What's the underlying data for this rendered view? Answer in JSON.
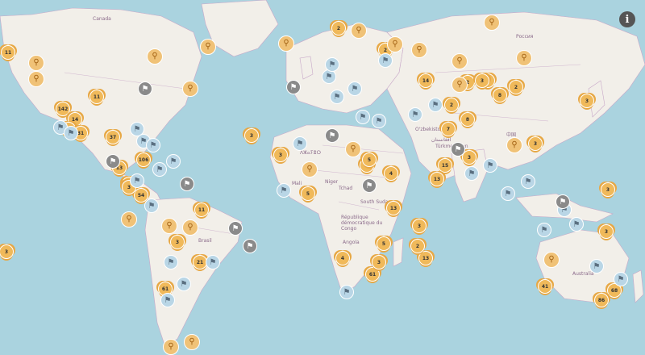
{
  "info_button_label": "i",
  "colors": {
    "water": "#aad3df",
    "land": "#f2efe9",
    "border": "#c8a8c8",
    "cluster": "#f0b95a",
    "flag": "#b9d6e6",
    "flag_dark": "#8a8a8a"
  },
  "labels": {
    "canada": "Canada",
    "russia": "Россия",
    "brasil": "Brasil",
    "mali": "Mali",
    "niger": "Niger",
    "tchad": "Tchad",
    "south_sudan": "South Sudan",
    "rdc": "République démocratique du Congo",
    "angola": "Angola",
    "australia": "Australia",
    "turkmenistan": "Türkmenistan",
    "uzbekistan": "O'zbekiston",
    "afghanistan": "افغانستان",
    "china": "中国",
    "algeria": "ⴷⵣⴰⵢⴻⵔ"
  },
  "markers": [
    {
      "type": "count",
      "text": "11"
    },
    {
      "type": "count",
      "text": "142"
    },
    {
      "type": "count",
      "text": "14"
    },
    {
      "type": "count",
      "text": "11"
    },
    {
      "type": "count",
      "text": "27"
    },
    {
      "type": "count",
      "text": "31"
    },
    {
      "type": "count",
      "text": "37"
    },
    {
      "type": "count",
      "text": "106"
    },
    {
      "type": "count",
      "text": "13"
    },
    {
      "type": "count",
      "text": "21"
    },
    {
      "type": "count",
      "text": "54"
    },
    {
      "type": "count",
      "text": "3"
    },
    {
      "type": "count",
      "text": "11"
    },
    {
      "type": "count",
      "text": "3"
    },
    {
      "type": "count",
      "text": "3"
    },
    {
      "type": "count",
      "text": "61"
    },
    {
      "type": "count",
      "text": "3"
    },
    {
      "type": "count",
      "text": "21"
    },
    {
      "type": "count",
      "text": "14"
    },
    {
      "type": "count",
      "text": "13"
    },
    {
      "type": "count",
      "text": "7"
    },
    {
      "type": "count",
      "text": "8"
    },
    {
      "type": "count",
      "text": "3"
    },
    {
      "type": "count",
      "text": "15"
    },
    {
      "type": "count",
      "text": "3"
    },
    {
      "type": "count",
      "text": "8"
    },
    {
      "type": "count",
      "text": "13"
    },
    {
      "type": "count",
      "text": "41"
    },
    {
      "type": "count",
      "text": "68"
    },
    {
      "type": "count",
      "text": "86"
    },
    {
      "type": "count",
      "text": "3"
    },
    {
      "type": "count",
      "text": "3"
    },
    {
      "type": "count",
      "text": "61"
    },
    {
      "type": "count",
      "text": "2"
    },
    {
      "type": "count",
      "text": "2"
    },
    {
      "type": "count",
      "text": "2"
    },
    {
      "type": "count",
      "text": "3"
    },
    {
      "type": "count",
      "text": "2"
    },
    {
      "type": "count",
      "text": "3"
    },
    {
      "type": "count",
      "text": "5"
    },
    {
      "type": "count",
      "text": "2"
    },
    {
      "type": "count",
      "text": "5"
    },
    {
      "type": "count",
      "text": "3"
    },
    {
      "type": "count",
      "text": "4"
    },
    {
      "type": "count",
      "text": "4"
    },
    {
      "type": "count",
      "text": "13"
    },
    {
      "type": "count",
      "text": "3"
    },
    {
      "type": "count",
      "text": "2"
    },
    {
      "type": "count",
      "text": "3"
    },
    {
      "type": "count",
      "text": "5"
    },
    {
      "type": "count",
      "text": "3"
    },
    {
      "type": "count",
      "text": "3"
    },
    {
      "type": "single",
      "text": ""
    },
    {
      "type": "single",
      "text": ""
    },
    {
      "type": "single",
      "text": ""
    },
    {
      "type": "single",
      "text": ""
    },
    {
      "type": "single",
      "text": ""
    },
    {
      "type": "single",
      "text": ""
    },
    {
      "type": "single",
      "text": ""
    },
    {
      "type": "single",
      "text": ""
    },
    {
      "type": "single",
      "text": ""
    },
    {
      "type": "single",
      "text": ""
    },
    {
      "type": "single",
      "text": ""
    },
    {
      "type": "single",
      "text": ""
    },
    {
      "type": "single",
      "text": ""
    },
    {
      "type": "single",
      "text": ""
    },
    {
      "type": "single",
      "text": ""
    },
    {
      "type": "single",
      "text": ""
    },
    {
      "type": "single",
      "text": ""
    },
    {
      "type": "single",
      "text": ""
    },
    {
      "type": "single",
      "text": ""
    },
    {
      "type": "single",
      "text": ""
    },
    {
      "type": "single",
      "text": ""
    },
    {
      "type": "single",
      "text": ""
    },
    {
      "type": "flag",
      "text": ""
    },
    {
      "type": "flag",
      "text": ""
    },
    {
      "type": "flag",
      "text": ""
    },
    {
      "type": "flag",
      "text": ""
    },
    {
      "type": "flag",
      "text": ""
    },
    {
      "type": "flag",
      "text": ""
    },
    {
      "type": "flag",
      "text": ""
    },
    {
      "type": "flag",
      "text": ""
    },
    {
      "type": "flag",
      "text": ""
    },
    {
      "type": "flag",
      "text": ""
    },
    {
      "type": "flag",
      "text": ""
    },
    {
      "type": "flag",
      "text": ""
    },
    {
      "type": "flag",
      "text": ""
    },
    {
      "type": "flag",
      "text": ""
    },
    {
      "type": "flag",
      "text": ""
    },
    {
      "type": "flag",
      "text": ""
    },
    {
      "type": "flag",
      "text": ""
    },
    {
      "type": "flag",
      "text": ""
    },
    {
      "type": "flag",
      "text": ""
    },
    {
      "type": "flag",
      "text": ""
    },
    {
      "type": "flag",
      "text": ""
    },
    {
      "type": "flag",
      "text": ""
    },
    {
      "type": "flag",
      "text": ""
    },
    {
      "type": "flag",
      "text": ""
    },
    {
      "type": "flag",
      "text": ""
    },
    {
      "type": "flag",
      "text": ""
    },
    {
      "type": "flag",
      "text": ""
    },
    {
      "type": "flag",
      "text": ""
    },
    {
      "type": "flag",
      "text": ""
    },
    {
      "type": "flag",
      "text": ""
    },
    {
      "type": "flag",
      "text": ""
    },
    {
      "type": "flag",
      "text": ""
    },
    {
      "type": "flag",
      "text": ""
    },
    {
      "type": "flag",
      "text": ""
    },
    {
      "type": "flag_dark",
      "text": ""
    },
    {
      "type": "flag_dark",
      "text": ""
    },
    {
      "type": "flag_dark",
      "text": ""
    },
    {
      "type": "flag_dark",
      "text": ""
    },
    {
      "type": "flag_dark",
      "text": ""
    },
    {
      "type": "flag_dark",
      "text": ""
    },
    {
      "type": "flag_dark",
      "text": ""
    },
    {
      "type": "flag_dark",
      "text": ""
    },
    {
      "type": "flag_dark",
      "text": ""
    },
    {
      "type": "flag_dark",
      "text": ""
    },
    {
      "type": "flag_dark",
      "text": ""
    },
    {
      "type": "flag_dark",
      "text": ""
    }
  ]
}
